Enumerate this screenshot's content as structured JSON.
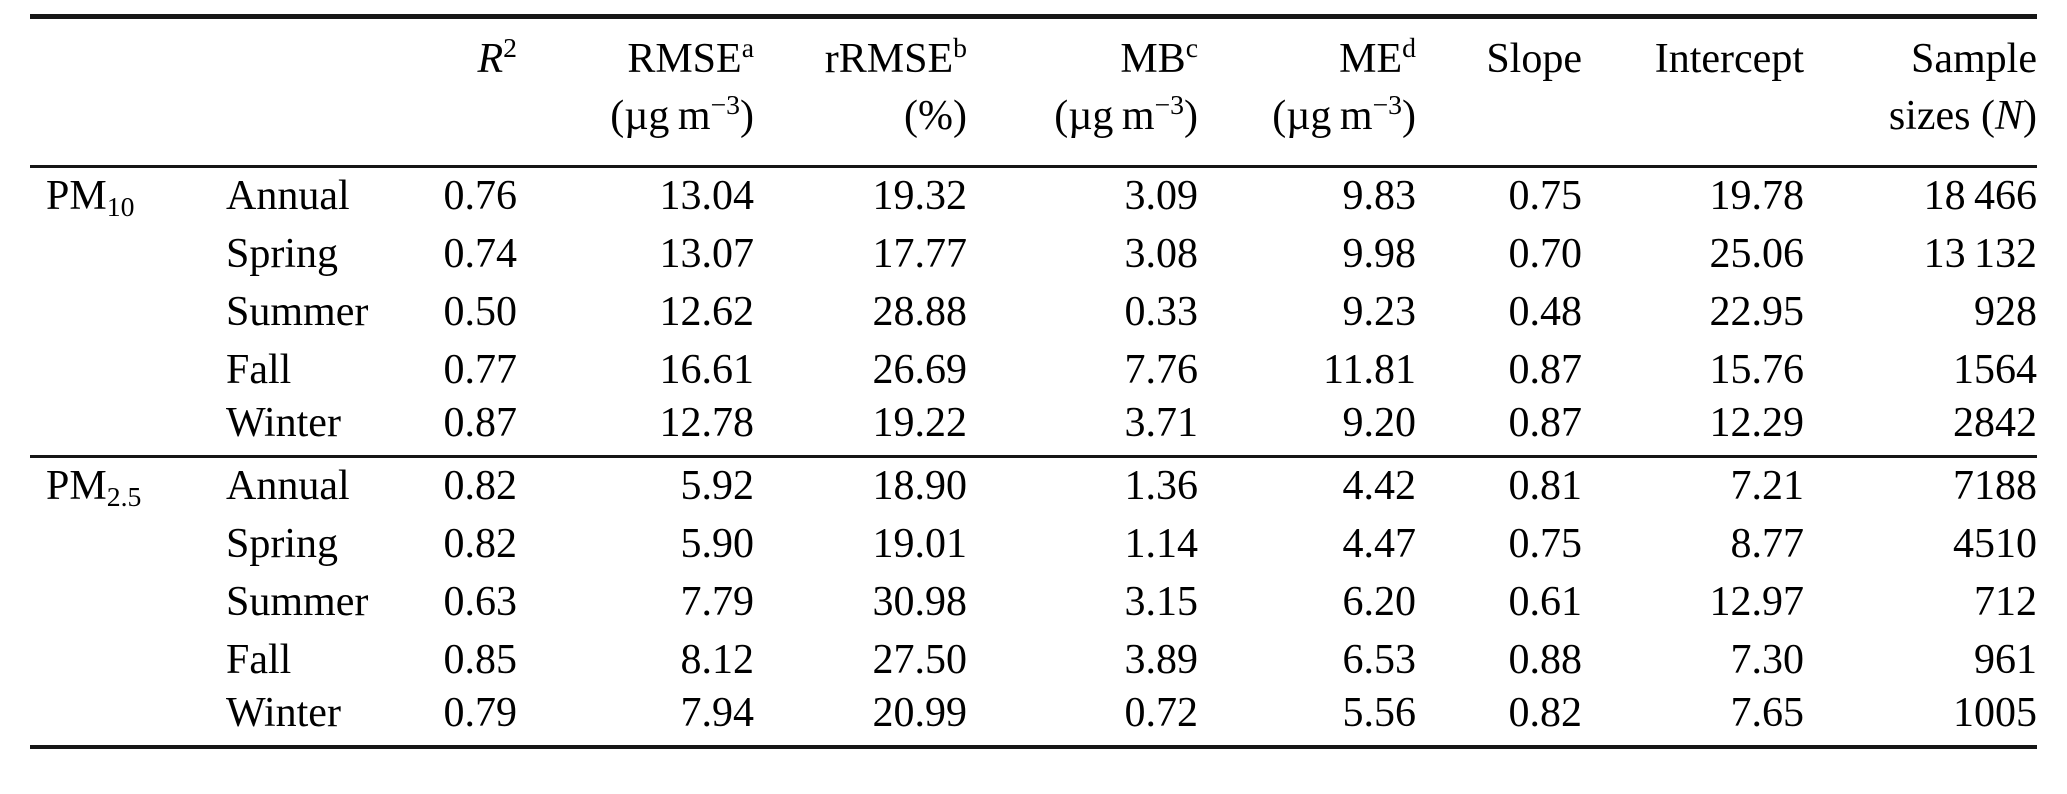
{
  "colors": {
    "rule": "#161616",
    "text": "#000000",
    "background": "#ffffff"
  },
  "table": {
    "header": {
      "col_r2": {
        "label": "R",
        "sup": "2"
      },
      "col_rmse": {
        "label": "RMSE",
        "sup": "a",
        "unit_pre": "(µg m",
        "unit_sup": "−3",
        "unit_post": ")"
      },
      "col_rrmse": {
        "label": "rRMSE",
        "sup": "b",
        "unit": "(%)"
      },
      "col_mb": {
        "label": "MB",
        "sup": "c",
        "unit_pre": "(µg m",
        "unit_sup": "−3",
        "unit_post": ")"
      },
      "col_me": {
        "label": "ME",
        "sup": "d",
        "unit_pre": "(µg m",
        "unit_sup": "−3",
        "unit_post": ")"
      },
      "col_slope": {
        "label": "Slope"
      },
      "col_intercept": {
        "label": "Intercept"
      },
      "col_n": {
        "label": "Sample",
        "line2_pre": "sizes (",
        "line2_var": "N",
        "line2_post": ")"
      }
    },
    "groups": [
      {
        "pollutant": {
          "base": "PM",
          "sub": "10"
        },
        "rows": [
          {
            "season": "Annual",
            "r2": "0.76",
            "rmse": "13.04",
            "rrmse": "19.32",
            "mb": "3.09",
            "me": "9.83",
            "slope": "0.75",
            "intercept": "19.78",
            "n": "18 466"
          },
          {
            "season": "Spring",
            "r2": "0.74",
            "rmse": "13.07",
            "rrmse": "17.77",
            "mb": "3.08",
            "me": "9.98",
            "slope": "0.70",
            "intercept": "25.06",
            "n": "13 132"
          },
          {
            "season": "Summer",
            "r2": "0.50",
            "rmse": "12.62",
            "rrmse": "28.88",
            "mb": "0.33",
            "me": "9.23",
            "slope": "0.48",
            "intercept": "22.95",
            "n": "928"
          },
          {
            "season": "Fall",
            "r2": "0.77",
            "rmse": "16.61",
            "rrmse": "26.69",
            "mb": "7.76",
            "me": "11.81",
            "slope": "0.87",
            "intercept": "15.76",
            "n": "1564"
          },
          {
            "season": "Winter",
            "r2": "0.87",
            "rmse": "12.78",
            "rrmse": "19.22",
            "mb": "3.71",
            "me": "9.20",
            "slope": "0.87",
            "intercept": "12.29",
            "n": "2842"
          }
        ]
      },
      {
        "pollutant": {
          "base": "PM",
          "sub": "2.5"
        },
        "rows": [
          {
            "season": "Annual",
            "r2": "0.82",
            "rmse": "5.92",
            "rrmse": "18.90",
            "mb": "1.36",
            "me": "4.42",
            "slope": "0.81",
            "intercept": "7.21",
            "n": "7188"
          },
          {
            "season": "Spring",
            "r2": "0.82",
            "rmse": "5.90",
            "rrmse": "19.01",
            "mb": "1.14",
            "me": "4.47",
            "slope": "0.75",
            "intercept": "8.77",
            "n": "4510"
          },
          {
            "season": "Summer",
            "r2": "0.63",
            "rmse": "7.79",
            "rrmse": "30.98",
            "mb": "3.15",
            "me": "6.20",
            "slope": "0.61",
            "intercept": "12.97",
            "n": "712"
          },
          {
            "season": "Fall",
            "r2": "0.85",
            "rmse": "8.12",
            "rrmse": "27.50",
            "mb": "3.89",
            "me": "6.53",
            "slope": "0.88",
            "intercept": "7.30",
            "n": "961"
          },
          {
            "season": "Winter",
            "r2": "0.79",
            "rmse": "7.94",
            "rrmse": "20.99",
            "mb": "0.72",
            "me": "5.56",
            "slope": "0.82",
            "intercept": "7.65",
            "n": "1005"
          }
        ]
      }
    ]
  }
}
